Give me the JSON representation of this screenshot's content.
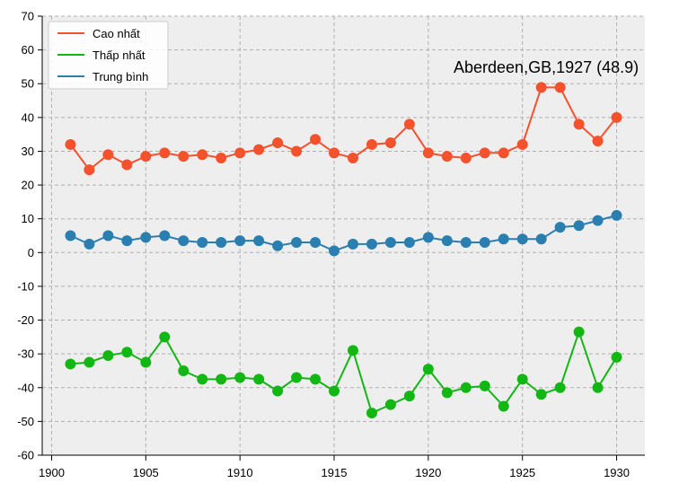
{
  "chart_data": {
    "type": "line",
    "x": [
      1901,
      1902,
      1903,
      1904,
      1905,
      1906,
      1907,
      1908,
      1909,
      1910,
      1911,
      1912,
      1913,
      1914,
      1915,
      1916,
      1917,
      1918,
      1919,
      1920,
      1921,
      1922,
      1923,
      1924,
      1925,
      1926,
      1927,
      1928,
      1929,
      1930
    ],
    "series": [
      {
        "name": "Cao nhất",
        "color": "#f4512c",
        "values": [
          32,
          24.5,
          29,
          26,
          28.5,
          29.5,
          28.5,
          29,
          28,
          29.5,
          30.5,
          32.5,
          30,
          33.5,
          29.5,
          28,
          32,
          32.5,
          38,
          29.5,
          28.5,
          28,
          29.5,
          29.5,
          32,
          48.9,
          48.9,
          38,
          33,
          40
        ]
      },
      {
        "name": "Thấp nhất",
        "color": "#13b713",
        "values": [
          -33,
          -32.5,
          -30.5,
          -29.5,
          -32.5,
          -25,
          -35,
          -37.5,
          -37.5,
          -37,
          -37.5,
          -41,
          -37,
          -37.5,
          -41,
          -29,
          -47.5,
          -45,
          -42.5,
          -34.5,
          -41.5,
          -40,
          -39.5,
          -45.5,
          -37.5,
          -42,
          -40,
          -23.5,
          -40,
          -31
        ]
      },
      {
        "name": "Trung bình",
        "color": "#2a7fb0",
        "values": [
          5,
          2.5,
          5,
          3.5,
          4.5,
          5,
          3.5,
          3,
          3,
          3.5,
          3.5,
          2,
          3,
          3,
          0.5,
          2.5,
          2.5,
          3,
          3,
          4.5,
          3.5,
          3,
          3,
          4,
          4,
          4,
          7.5,
          8,
          9.5,
          11
        ]
      }
    ],
    "xlim": [
      1899.5,
      1931.5
    ],
    "ylim": [
      -60,
      70
    ],
    "xticks": [
      1900,
      1905,
      1910,
      1915,
      1920,
      1925,
      1930
    ],
    "yticks": [
      -60,
      -50,
      -40,
      -30,
      -20,
      -10,
      0,
      10,
      20,
      30,
      40,
      50,
      60,
      70
    ],
    "grid": true,
    "legend_position": "top-left",
    "annotation": "Aberdeen,GB,1927 (48.9)",
    "plot_background": "#eeeeee"
  }
}
